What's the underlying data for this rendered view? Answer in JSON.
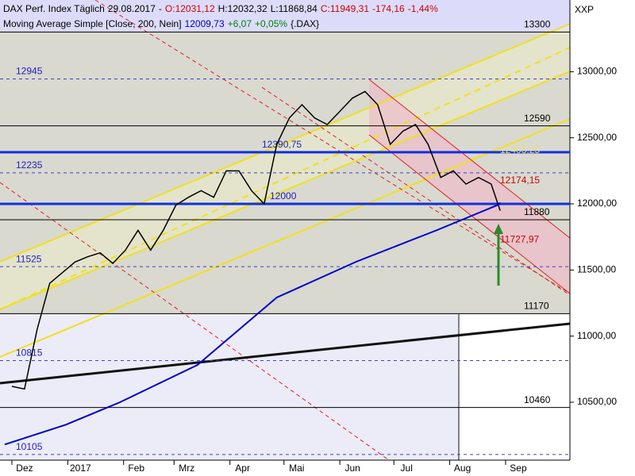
{
  "chart_data": {
    "type": "line",
    "header_line1": [
      {
        "text": "DAX Perf. Index Täglich",
        "color": "#000000"
      },
      {
        "text": "29.08.2017",
        "color": "#000000"
      },
      {
        "text": "-",
        "color": "#000000"
      },
      {
        "text": "O:12031,12",
        "color": "#d00000"
      },
      {
        "text": "H:12032,32",
        "color": "#000000"
      },
      {
        "text": "L:11868,84",
        "color": "#000000"
      },
      {
        "text": "C:11949,31",
        "color": "#d00000"
      },
      {
        "text": "-174,16",
        "color": "#d00000"
      },
      {
        "text": "-1,44%",
        "color": "#d00000"
      }
    ],
    "header_line2": [
      {
        "text": "Moving Average Simple [Close, 200, Nein]",
        "color": "#000000"
      },
      {
        "text": "12009,73",
        "color": "#0000cc"
      },
      {
        "text": "+6,07",
        "color": "#008000"
      },
      {
        "text": "+0,05%",
        "color": "#008000"
      },
      {
        "text": "{.DAX}",
        "color": "#000000"
      }
    ],
    "symbol": "XXP",
    "xlim": [
      -6.6,
      309.7
    ],
    "ylim": [
      10062,
      13542
    ],
    "xticks": [
      {
        "value": 0,
        "label": "Dez"
      },
      {
        "value": 31,
        "label": "2017"
      },
      {
        "value": 62,
        "label": "Feb"
      },
      {
        "value": 90,
        "label": "Mrz"
      },
      {
        "value": 121,
        "label": "Apr"
      },
      {
        "value": 151,
        "label": "Mai"
      },
      {
        "value": 182,
        "label": "Jun"
      },
      {
        "value": 212,
        "label": "Jul"
      },
      {
        "value": 243,
        "label": "Aug"
      },
      {
        "value": 274,
        "label": "Sep"
      }
    ],
    "yticks": [
      {
        "value": 13000,
        "label": "13000,00"
      },
      {
        "value": 12500,
        "label": "12500,00"
      },
      {
        "value": 12000,
        "label": "12000,00"
      },
      {
        "value": 11500,
        "label": "11500,00"
      },
      {
        "value": 11000,
        "label": "11000,00"
      },
      {
        "value": 10500,
        "label": "10500,00"
      }
    ],
    "levels": [
      {
        "value": 13300,
        "style": "solid"
      },
      {
        "value": 12945,
        "style": "dashed"
      },
      {
        "value": 12590,
        "style": "solid"
      },
      {
        "value": {
          "value": 12390.75,
          "label": "12390,75"
        },
        "style": "thick"
      },
      {
        "value": 12235,
        "style": "dashed"
      },
      {
        "value": 12000,
        "style": "thick"
      },
      {
        "value": 11880,
        "style": "solid"
      },
      {
        "value": 11525,
        "style": "dashed"
      },
      {
        "value": 11170,
        "style": "solid"
      },
      {
        "value": 10815,
        "style": "dashed"
      },
      {
        "value": 10460,
        "style": "solid"
      },
      {
        "value": 10105,
        "style": "dashed"
      }
    ],
    "annotations": [
      {
        "value": {
          "value": 12403.25,
          "label": "12403,25"
        },
        "color": "#e8e070"
      },
      {
        "value": {
          "value": 12174.15,
          "label": "12174,15"
        },
        "color": "#d00000"
      },
      {
        "value": {
          "value": 11727.97,
          "label": "11727,97"
        },
        "color": "#d00000"
      }
    ],
    "series": [
      {
        "name": "DAX Perf. Index",
        "color": "#000000",
        "x": [
          0,
          7,
          14,
          21,
          28,
          35,
          42,
          49,
          56,
          63,
          70,
          77,
          84,
          91,
          98,
          105,
          112,
          119,
          126,
          133,
          140,
          147,
          154,
          161,
          168,
          175,
          182,
          189,
          196,
          203,
          210,
          217,
          224,
          231,
          238,
          245,
          252,
          259,
          266,
          271
        ],
        "values": [
          10620,
          10600,
          11050,
          11400,
          11480,
          11560,
          11600,
          11630,
          11550,
          11650,
          11800,
          11650,
          11800,
          11990,
          12050,
          12100,
          12050,
          12250,
          12250,
          12100,
          12000,
          12450,
          12650,
          12750,
          12650,
          12600,
          12700,
          12800,
          12850,
          12750,
          12450,
          12550,
          12600,
          12450,
          12200,
          12250,
          12150,
          12200,
          12150,
          11949.31
        ]
      },
      {
        "name": "Moving Average Simple",
        "color": "#0000cc",
        "x": [
          -4,
          30,
          60,
          103,
          147,
          191,
          236,
          270,
          271
        ],
        "values": [
          10180,
          10330,
          10500,
          10782,
          11292,
          11562,
          11802,
          11994,
          12009.73
        ]
      }
    ]
  }
}
